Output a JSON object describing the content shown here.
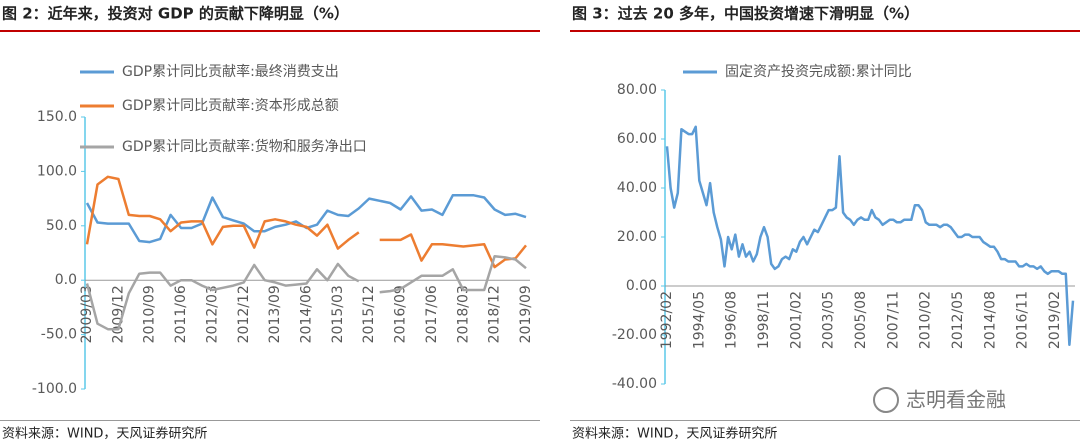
{
  "chart_data": [
    {
      "type": "line",
      "title": "图 2：近年来，投资对 GDP 的贡献下降明显（%）",
      "source": "资料来源：WIND，天风证券研究所",
      "categories": [
        "2009/03",
        null,
        null,
        "2009/12",
        null,
        null,
        "2010/09",
        null,
        null,
        "2011/06",
        null,
        null,
        "2012/03",
        null,
        null,
        "2012/12",
        null,
        null,
        "2013/09",
        null,
        null,
        "2014/06",
        null,
        null,
        "2015/03",
        null,
        null,
        "2015/12",
        null,
        null,
        "2016/09",
        null,
        null,
        "2017/06",
        null,
        null,
        "2018/03",
        null,
        null,
        "2018/12",
        null,
        null,
        "2019/09"
      ],
      "series": [
        {
          "name": "GDP累计同比贡献率:最终消费支出",
          "color": "#5b9bd5",
          "values": [
            71,
            53,
            52,
            52,
            52,
            36,
            35,
            38,
            60,
            48,
            48,
            52,
            76,
            58,
            55,
            52,
            45,
            45,
            49,
            51,
            54,
            48,
            51,
            64,
            60,
            59,
            66,
            75,
            73,
            71,
            65,
            77,
            64,
            65,
            60,
            78,
            78,
            78,
            76,
            65,
            60,
            61,
            58
          ]
        },
        {
          "name": "GDP累计同比贡献率:资本形成总额",
          "color": "#ed7d31",
          "values": [
            33,
            88,
            95,
            93,
            60,
            59,
            59,
            56,
            45,
            53,
            54,
            54,
            33,
            49,
            50,
            50,
            30,
            54,
            56,
            54,
            51,
            49,
            41,
            51,
            29,
            37,
            44,
            null,
            37,
            37,
            37,
            42,
            18,
            33,
            33,
            32,
            31,
            32,
            33,
            12,
            19,
            20,
            32
          ]
        },
        {
          "name": "GDP累计同比贡献率:货物和服务净出口",
          "color": "#a5a5a5",
          "values": [
            -3,
            -40,
            -45,
            -45,
            -12,
            6,
            7,
            7,
            -5,
            0,
            0,
            -5,
            -9,
            -7,
            -5,
            -2,
            14,
            0,
            -2,
            -5,
            -4,
            -3,
            10,
            0,
            15,
            4,
            -1,
            null,
            -11,
            -10,
            -8,
            -2,
            4,
            4,
            4,
            10,
            -9,
            -9,
            -9,
            22,
            21,
            19,
            11
          ]
        }
      ],
      "ylim": [
        -100,
        150
      ],
      "yticks": [
        {
          "value": -100,
          "label": "-100.0"
        },
        {
          "value": -50,
          "label": "-50.0"
        },
        {
          "value": 0,
          "label": "0.0"
        },
        {
          "value": 50,
          "label": "50.0"
        },
        {
          "value": 100,
          "label": "100.0"
        },
        {
          "value": 150,
          "label": "150.0"
        }
      ]
    },
    {
      "type": "line",
      "title": "图 3：过去 20 多年，中国投资增速下滑明显（%）",
      "source": "资料来源：WIND，天风证券研究所",
      "x": [
        "1992/02",
        "1992/05",
        "1992/08",
        "1992/11",
        "1993/02",
        "1993/05",
        "1993/08",
        "1993/11",
        "1994/02",
        "1994/05",
        "1994/08",
        "1994/11",
        "1995/02",
        "1995/05",
        "1995/08",
        "1995/11",
        "1996/02",
        "1996/05",
        "1996/08",
        "1996/11",
        "1997/02",
        "1997/05",
        "1997/08",
        "1997/11",
        "1998/02",
        "1998/05",
        "1998/08",
        "1998/11",
        "1999/02",
        "1999/05",
        "1999/08",
        "1999/11",
        "2000/02",
        "2000/05",
        "2000/08",
        "2000/11",
        "2001/02",
        "2001/05",
        "2001/08",
        "2001/11",
        "2002/02",
        "2002/05",
        "2002/08",
        "2002/11",
        "2003/02",
        "2003/05",
        "2003/08",
        "2003/11",
        "2004/02",
        "2004/05",
        "2004/08",
        "2004/11",
        "2005/02",
        "2005/05",
        "2005/08",
        "2005/11",
        "2006/02",
        "2006/05",
        "2006/08",
        "2006/11",
        "2007/02",
        "2007/05",
        "2007/08",
        "2007/11",
        "2008/02",
        "2008/05",
        "2008/08",
        "2008/11",
        "2009/02",
        "2009/05",
        "2009/08",
        "2009/11",
        "2010/02",
        "2010/05",
        "2010/08",
        "2010/11",
        "2011/02",
        "2011/05",
        "2011/08",
        "2011/11",
        "2012/02",
        "2012/05",
        "2012/08",
        "2012/11",
        "2013/02",
        "2013/05",
        "2013/08",
        "2013/11",
        "2014/02",
        "2014/05",
        "2014/08",
        "2014/11",
        "2015/02",
        "2015/05",
        "2015/08",
        "2015/11",
        "2016/02",
        "2016/05",
        "2016/08",
        "2016/11",
        "2017/02",
        "2017/05",
        "2017/08",
        "2017/11",
        "2018/02",
        "2018/05",
        "2018/08",
        "2018/11",
        "2019/02",
        "2019/05",
        "2019/08",
        "2019/11",
        "2020/02",
        "2020/05"
      ],
      "series": [
        {
          "name": "固定资产投资完成额:累计同比",
          "color": "#5b9bd5",
          "values": [
            57,
            40,
            32,
            38,
            64,
            63,
            62,
            62,
            65,
            43,
            38,
            33,
            42,
            30,
            24,
            19,
            8,
            20,
            15,
            21,
            12,
            17,
            12,
            14,
            10,
            13,
            20,
            24,
            20,
            9,
            7,
            8,
            11,
            12,
            11,
            15,
            14,
            18,
            20,
            17,
            20,
            23,
            22,
            25,
            28,
            31,
            31,
            32,
            53,
            30,
            28,
            27,
            25,
            27,
            28,
            27,
            27,
            31,
            28,
            27,
            25,
            26,
            27,
            27,
            26,
            26,
            27,
            27,
            27,
            33,
            33,
            31,
            26,
            25,
            25,
            25,
            24,
            25,
            25,
            24,
            22,
            20,
            20,
            21,
            21,
            20,
            20,
            20,
            18,
            17,
            16,
            16,
            14,
            11,
            11,
            10,
            10,
            10,
            8,
            8,
            9,
            8,
            8,
            7,
            8,
            6,
            5,
            6,
            6,
            6,
            5,
            5,
            -24,
            -6
          ]
        }
      ],
      "xticks": [
        "1992/02",
        "1994/05",
        "1996/08",
        "1998/11",
        "2001/02",
        "2003/05",
        "2005/08",
        "2007/11",
        "2010/02",
        "2012/05",
        "2014/08",
        "2016/11",
        "2019/02"
      ],
      "ylim": [
        -40,
        80
      ],
      "yticks": [
        {
          "value": -40,
          "label": "-40.00"
        },
        {
          "value": -20,
          "label": "-20.00"
        },
        {
          "value": 0,
          "label": "0.00"
        },
        {
          "value": 20,
          "label": "20.00"
        },
        {
          "value": 40,
          "label": "40.00"
        },
        {
          "value": 60,
          "label": "60.00"
        },
        {
          "value": 80,
          "label": "80.00"
        }
      ]
    }
  ],
  "watermark": "志明看金融"
}
